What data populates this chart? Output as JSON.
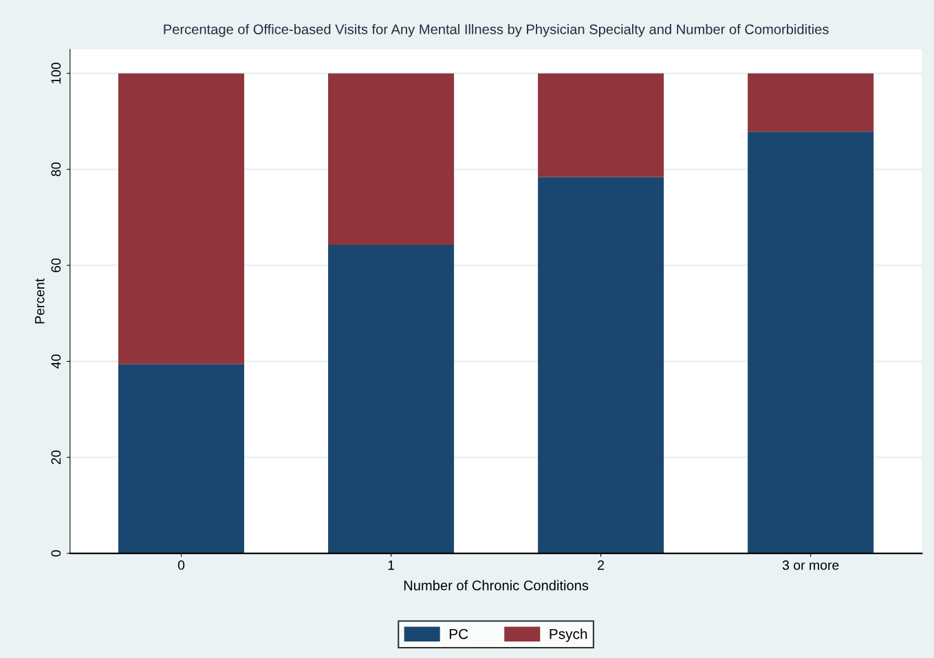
{
  "chart_data": {
    "type": "bar",
    "stacked": true,
    "title": "Percentage of Office-based Visits for Any Mental Illness by Physician Specialty and Number of Comorbidities",
    "xlabel": "Number of Chronic Conditions",
    "ylabel": "Percent",
    "categories": [
      "0",
      "1",
      "2",
      "3 or more"
    ],
    "series": [
      {
        "name": "PC",
        "color": "#1a476f",
        "values": [
          39.4,
          64.3,
          78.4,
          87.9
        ]
      },
      {
        "name": "Psych",
        "color": "#90353b",
        "values": [
          60.6,
          35.7,
          21.6,
          12.1
        ]
      }
    ],
    "ylim": [
      0,
      105
    ],
    "yticks": [
      0,
      20,
      40,
      60,
      80,
      100
    ],
    "grid": "y",
    "legend": "bottom"
  }
}
